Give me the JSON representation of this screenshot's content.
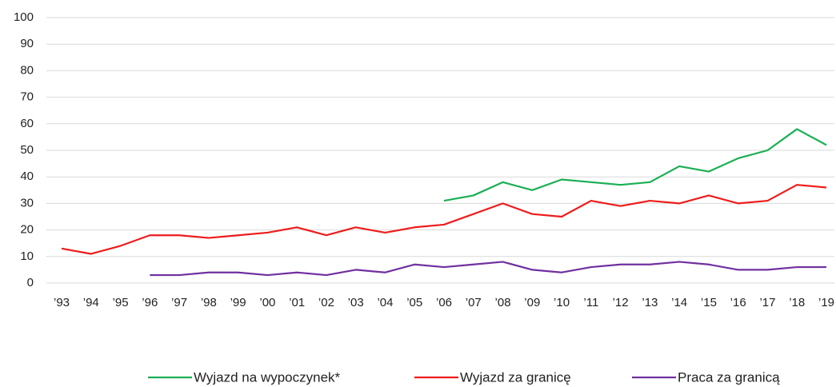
{
  "chart_data": {
    "type": "line",
    "categories": [
      "’93",
      "’94",
      "’95",
      "’96",
      "’97",
      "’98",
      "’99",
      "’00",
      "’01",
      "’02",
      "’03",
      "’04",
      "’05",
      "’06",
      "’07",
      "’08",
      "’09",
      "’10",
      "’11",
      "’12",
      "’13",
      "’14",
      "’15",
      "’16",
      "’17",
      "’18",
      "’19"
    ],
    "series": [
      {
        "name": "Wyjazd na wypoczynek*",
        "color": "#1aaf54",
        "values": [
          null,
          null,
          null,
          null,
          null,
          null,
          null,
          null,
          null,
          null,
          null,
          null,
          null,
          31,
          33,
          38,
          35,
          39,
          38,
          37,
          38,
          44,
          42,
          47,
          50,
          58,
          52
        ]
      },
      {
        "name": "Wyjazd za granicę",
        "color": "#ee1c1c",
        "values": [
          13,
          11,
          14,
          18,
          18,
          17,
          18,
          19,
          21,
          18,
          21,
          19,
          21,
          22,
          26,
          30,
          26,
          25,
          31,
          29,
          31,
          30,
          33,
          30,
          31,
          37,
          36
        ]
      },
      {
        "name": "Praca za granicą",
        "color": "#7030a0",
        "values": [
          null,
          null,
          null,
          3,
          3,
          4,
          4,
          3,
          4,
          3,
          5,
          4,
          7,
          6,
          7,
          8,
          5,
          4,
          6,
          7,
          7,
          8,
          7,
          5,
          5,
          6,
          6
        ]
      }
    ],
    "ylim": [
      0,
      100
    ],
    "yticks": [
      0,
      10,
      20,
      30,
      40,
      50,
      60,
      70,
      80,
      90,
      100
    ],
    "grid": true,
    "legend": "bottom"
  }
}
